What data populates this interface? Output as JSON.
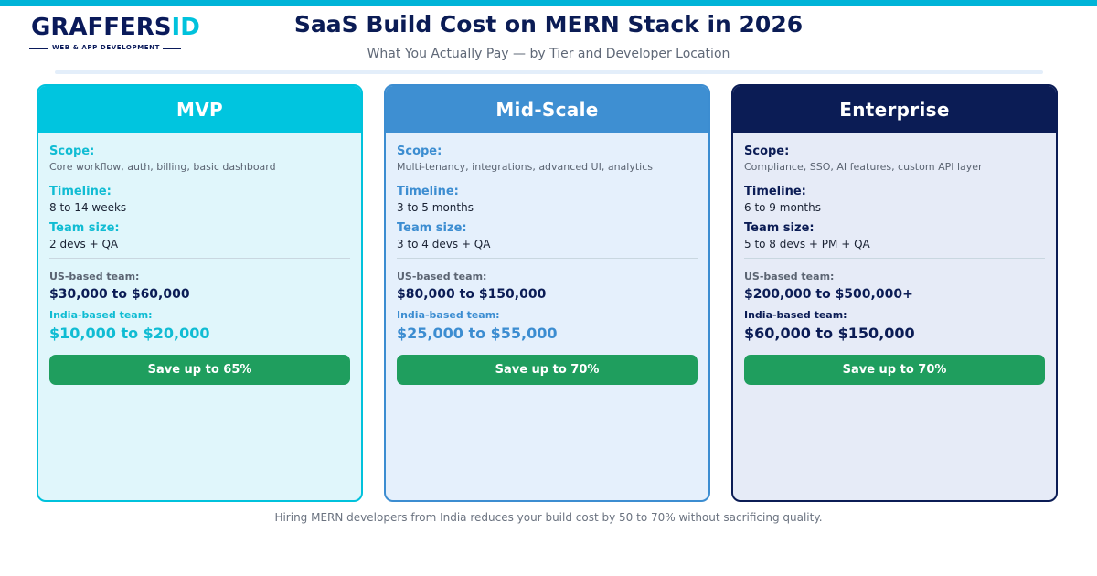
{
  "logo": {
    "word_main": "GRAFFERS",
    "word_accent": "ID",
    "tagline": "WEB & APP DEVELOPMENT"
  },
  "title": "SaaS Build Cost on MERN Stack in 2026",
  "subtitle": "What You Actually Pay — by Tier and Developer Location",
  "labels": {
    "scope": "Scope:",
    "timeline": "Timeline:",
    "team_size": "Team size:",
    "us_team": "US-based team:",
    "india_team": "India-based team:"
  },
  "tiers": [
    {
      "name": "MVP",
      "scope": "Core workflow, auth, billing, basic dashboard",
      "timeline": "8 to 14 weeks",
      "team_size": "2 devs + QA",
      "us_cost": "$30,000 to $60,000",
      "india_cost": "$10,000 to $20,000",
      "savings": "Save up to 65%",
      "color": "#00c5df"
    },
    {
      "name": "Mid-Scale",
      "scope": "Multi-tenancy, integrations, advanced UI, analytics",
      "timeline": "3 to 5 months",
      "team_size": "3 to 4 devs + QA",
      "us_cost": "$80,000 to $150,000",
      "india_cost": "$25,000 to $55,000",
      "savings": "Save up to 70%",
      "color": "#3e8fd2"
    },
    {
      "name": "Enterprise",
      "scope": "Compliance, SSO, AI features, custom API layer",
      "timeline": "6 to 9 months",
      "team_size": "5 to 8 devs + PM + QA",
      "us_cost": "$200,000 to $500,000+",
      "india_cost": "$60,000 to $150,000",
      "savings": "Save up to 70%",
      "color": "#0b1c55"
    }
  ],
  "colors": {
    "top_bar": "#00b4d8",
    "save_button": "#1f9e5e",
    "navy": "#0b1c55"
  },
  "footnote": "Hiring MERN developers from India reduces your build cost by 50 to 70% without sacrificing quality."
}
